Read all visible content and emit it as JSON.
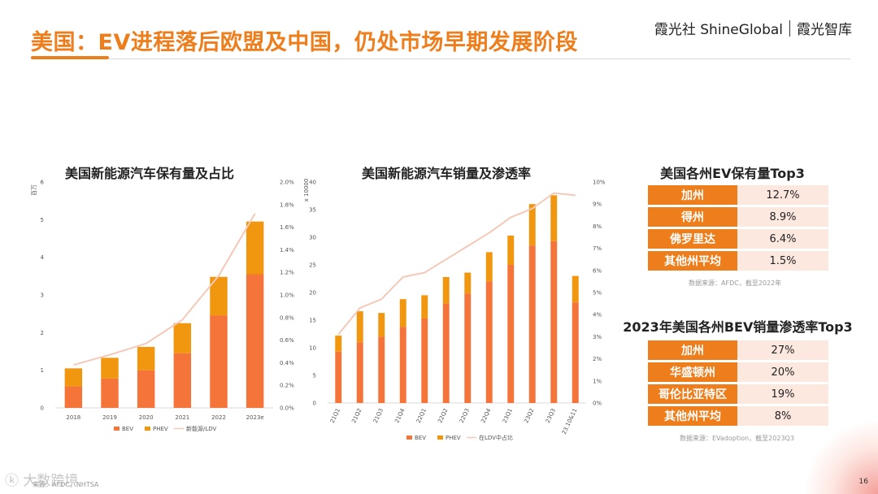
{
  "header": {
    "title": "美国：EV进程落后欧盟及中国，仍处市场早期发展阶段",
    "brand_left": "霞光社 ShineGlobal",
    "brand_right": "霞光智库"
  },
  "colors": {
    "accent": "#ee7d1c",
    "bev": "#f4743a",
    "phev": "#f0960f",
    "line": "#f5c8b8",
    "table_value_bg": "#fde8e0"
  },
  "chart_data": [
    {
      "type": "bar",
      "stacked": true,
      "title": "美国新能源汽车保有量及占比",
      "ylabel": "百万",
      "categories": [
        "2018",
        "2019",
        "2020",
        "2021",
        "2022",
        "2023e"
      ],
      "series": [
        {
          "name": "BEV",
          "values": [
            0.57,
            0.78,
            1.0,
            1.45,
            2.45,
            3.55
          ]
        },
        {
          "name": "PHEV",
          "values": [
            0.48,
            0.55,
            0.62,
            0.8,
            1.03,
            1.4
          ]
        }
      ],
      "line": {
        "name": "新能源/LDV",
        "values": [
          0.38,
          0.47,
          0.57,
          0.78,
          1.17,
          1.72
        ]
      },
      "ylim": [
        0,
        6
      ],
      "y_ticks": [
        "0",
        "1",
        "2",
        "3",
        "4",
        "5",
        "6"
      ],
      "y2lim": [
        0,
        2.0
      ],
      "y2_ticks": [
        "0.0%",
        "0.2%",
        "0.4%",
        "0.6%",
        "0.8%",
        "1.0%",
        "1.2%",
        "1.4%",
        "1.6%",
        "1.8%",
        "2.0%"
      ],
      "legend": [
        "BEV",
        "PHEV",
        "新能源/LDV"
      ]
    },
    {
      "type": "bar",
      "stacked": true,
      "title": "美国新能源汽车销量及渗透率",
      "ylabel": "x 10000",
      "categories": [
        "21Q1",
        "21Q2",
        "21Q3",
        "21Q4",
        "22Q1",
        "22Q2",
        "22Q3",
        "22Q4",
        "23Q1",
        "23Q2",
        "23Q3",
        "23.10&11"
      ],
      "series": [
        {
          "name": "BEV",
          "values": [
            9.3,
            11.0,
            12.0,
            13.8,
            15.3,
            18.0,
            19.8,
            22.0,
            25.0,
            28.5,
            29.3,
            18.2
          ]
        },
        {
          "name": "PHEV",
          "values": [
            2.9,
            5.6,
            4.3,
            5.0,
            4.2,
            4.8,
            3.8,
            5.3,
            5.3,
            7.5,
            8.3,
            4.8
          ]
        }
      ],
      "line": {
        "name": "在LDV中占比",
        "values": [
          3.1,
          4.3,
          4.7,
          5.7,
          5.9,
          6.5,
          7.1,
          7.7,
          8.4,
          8.8,
          9.5,
          9.4
        ]
      },
      "ylim": [
        0,
        40
      ],
      "y_ticks": [
        "0",
        "5",
        "10",
        "15",
        "20",
        "25",
        "30",
        "35",
        "40"
      ],
      "y2lim": [
        0,
        10
      ],
      "y2_ticks": [
        "0%",
        "1%",
        "2%",
        "3%",
        "4%",
        "5%",
        "6%",
        "7%",
        "8%",
        "9%",
        "10%"
      ],
      "legend": [
        "BEV",
        "PHEV",
        "在LDV中占比"
      ]
    },
    {
      "type": "table",
      "title": "美国各州EV保有量Top3",
      "rows": [
        {
          "state": "加州",
          "value": "12.7%"
        },
        {
          "state": "得州",
          "value": "8.9%"
        },
        {
          "state": "佛罗里达",
          "value": "6.4%"
        },
        {
          "state": "其他州平均",
          "value": "1.5%"
        }
      ],
      "source": "数据来源：AFDC，截至2022年"
    },
    {
      "type": "table",
      "title": "2023年美国各州BEV销量渗透率Top3",
      "rows": [
        {
          "state": "加州",
          "value": "27%"
        },
        {
          "state": "华盛顿州",
          "value": "20%"
        },
        {
          "state": "哥伦比亚特区",
          "value": "19%"
        },
        {
          "state": "其他州平均",
          "value": "8%"
        }
      ],
      "source": "数据来源：EVadoption，截至2023Q3"
    }
  ],
  "footer": {
    "watermark": "大数跨境",
    "source": "来源：AFDC，NHTSA",
    "page": "16"
  }
}
